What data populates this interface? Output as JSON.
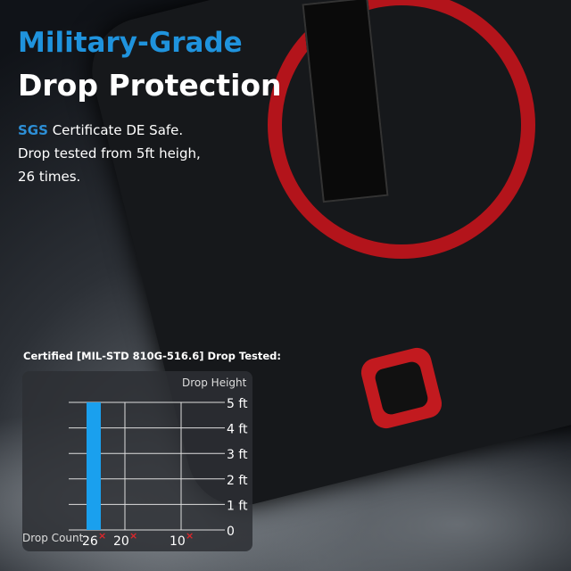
{
  "headline": {
    "line1": "Military-Grade",
    "line2": "Drop Protection"
  },
  "description": {
    "brand": "SGS",
    "line1_rest": "Certificate DE Safe.",
    "line2": "Drop tested from 5ft heigh,",
    "line3": "26 times."
  },
  "colors": {
    "accent": "#1f93dd",
    "bar": "#1aa0ee",
    "cross": "#e0262b",
    "case_red": "#b3141b"
  },
  "chart_data": {
    "type": "bar",
    "title": "Certified [MIL-STD 810G-516.6] Drop Tested:",
    "ylabel": "Drop Height",
    "xlabel": "Drop Count",
    "ylim": [
      0,
      5
    ],
    "yticks": [
      "0",
      "1 ft",
      "2 ft",
      "3 ft",
      "4 ft",
      "5 ft"
    ],
    "xticks": [
      "26",
      "20",
      "10"
    ],
    "xtick_marker": "×",
    "categories": [
      "26"
    ],
    "values": [
      5
    ],
    "grid": true
  }
}
